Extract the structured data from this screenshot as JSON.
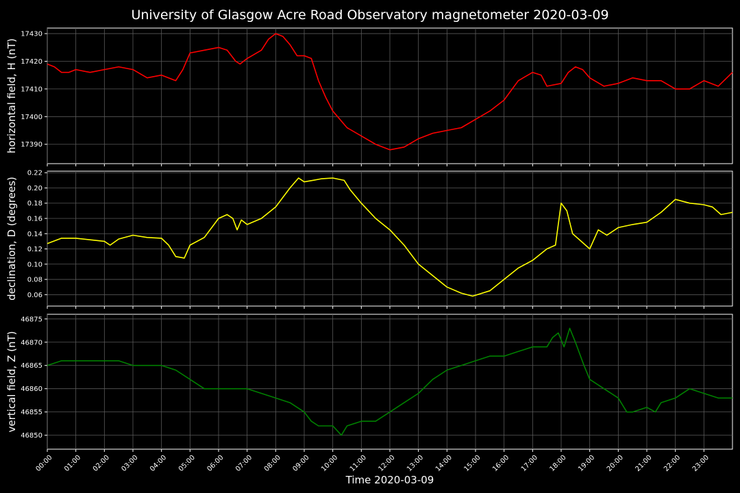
{
  "title": "University of Glasgow Acre Road Observatory magnetometer 2020-03-09",
  "chart_data": [
    {
      "type": "line",
      "id": "H",
      "ylabel": "horizontal field, H (nT)",
      "color": "#ff0000",
      "ylim": [
        17383,
        17432
      ],
      "yticks": [
        17390,
        17400,
        17410,
        17420,
        17430
      ],
      "grid": true,
      "series": [
        {
          "x": [
            0,
            0.25,
            0.5,
            0.75,
            1,
            1.5,
            2,
            2.5,
            3,
            3.5,
            4,
            4.5,
            4.75,
            5,
            5.5,
            6,
            6.3,
            6.6,
            6.75,
            7,
            7.5,
            7.75,
            8,
            8.25,
            8.5,
            8.75,
            9,
            9.25,
            9.5,
            9.75,
            10,
            10.5,
            11,
            11.5,
            12,
            12.5,
            13,
            13.5,
            14,
            14.5,
            15,
            15.5,
            16,
            16.5,
            17,
            17.3,
            17.5,
            18,
            18.25,
            18.5,
            18.75,
            19,
            19.5,
            20,
            20.5,
            21,
            21.5,
            22,
            22.5,
            23,
            23.5,
            24
          ],
          "y": [
            17419,
            17418,
            17416,
            17416,
            17417,
            17416,
            17417,
            17418,
            17417,
            17414,
            17415,
            17413,
            17417,
            17423,
            17424,
            17425,
            17424,
            17420,
            17419,
            17421,
            17424,
            17428,
            17430,
            17429,
            17426,
            17422,
            17422,
            17421,
            17413,
            17407,
            17402,
            17396,
            17393,
            17390,
            17388,
            17389,
            17392,
            17394,
            17395,
            17396,
            17399,
            17402,
            17406,
            17413,
            17416,
            17415,
            17411,
            17412,
            17416,
            17418,
            17417,
            17414,
            17411,
            17412,
            17414,
            17413,
            17413,
            17410,
            17410,
            17413,
            17411,
            17416
          ]
        }
      ]
    },
    {
      "type": "line",
      "id": "D",
      "ylabel": "declination, D (degrees)",
      "color": "#ffff00",
      "ylim": [
        0.045,
        0.222
      ],
      "yticks": [
        0.06,
        0.08,
        0.1,
        0.12,
        0.14,
        0.16,
        0.18,
        0.2,
        0.22
      ],
      "grid": true,
      "series": [
        {
          "x": [
            0,
            0.5,
            1,
            1.5,
            2,
            2.2,
            2.5,
            3,
            3.5,
            4,
            4.25,
            4.5,
            4.8,
            5,
            5.5,
            6,
            6.3,
            6.5,
            6.65,
            6.8,
            7,
            7.5,
            8,
            8.5,
            8.8,
            9,
            9.3,
            9.6,
            10,
            10.4,
            10.6,
            11,
            11.5,
            12,
            12.5,
            13,
            13.5,
            14,
            14.5,
            14.9,
            15.5,
            16,
            16.5,
            17,
            17.5,
            17.8,
            18,
            18.2,
            18.4,
            18.7,
            19,
            19.3,
            19.6,
            20,
            20.5,
            21,
            21.5,
            22,
            22.5,
            23,
            23.3,
            23.6,
            24
          ],
          "y": [
            0.127,
            0.134,
            0.134,
            0.132,
            0.13,
            0.125,
            0.133,
            0.138,
            0.135,
            0.134,
            0.125,
            0.11,
            0.108,
            0.125,
            0.135,
            0.16,
            0.165,
            0.16,
            0.145,
            0.158,
            0.152,
            0.16,
            0.175,
            0.2,
            0.213,
            0.208,
            0.21,
            0.212,
            0.213,
            0.21,
            0.198,
            0.18,
            0.16,
            0.145,
            0.125,
            0.1,
            0.085,
            0.07,
            0.062,
            0.058,
            0.065,
            0.08,
            0.095,
            0.105,
            0.12,
            0.125,
            0.18,
            0.17,
            0.14,
            0.13,
            0.12,
            0.145,
            0.138,
            0.148,
            0.152,
            0.155,
            0.168,
            0.185,
            0.18,
            0.178,
            0.175,
            0.165,
            0.168
          ]
        }
      ]
    },
    {
      "type": "line",
      "id": "Z",
      "ylabel": "vertical field, Z (nT)",
      "color": "#008000",
      "ylim": [
        46847,
        46876
      ],
      "yticks": [
        46850,
        46855,
        46860,
        46865,
        46870,
        46875
      ],
      "grid": true,
      "series": [
        {
          "x": [
            0,
            0.5,
            1,
            1.5,
            2,
            2.5,
            3,
            3.5,
            4,
            4.5,
            5,
            5.5,
            6,
            6.5,
            7,
            7.5,
            8,
            8.5,
            9,
            9.25,
            9.5,
            10,
            10.3,
            10.5,
            11,
            11.5,
            12,
            12.5,
            13,
            13.5,
            14,
            14.5,
            15,
            15.5,
            16,
            16.5,
            17,
            17.5,
            17.7,
            17.9,
            18.1,
            18.3,
            18.5,
            18.8,
            19,
            19.5,
            20,
            20.3,
            20.5,
            21,
            21.3,
            21.5,
            22,
            22.5,
            23,
            23.5,
            24
          ],
          "y": [
            46865,
            46866,
            46866,
            46866,
            46866,
            46866,
            46865,
            46865,
            46865,
            46864,
            46862,
            46860,
            46860,
            46860,
            46860,
            46859,
            46858,
            46857,
            46855,
            46853,
            46852,
            46852,
            46850,
            46852,
            46853,
            46853,
            46855,
            46857,
            46859,
            46862,
            46864,
            46865,
            46866,
            46867,
            46867,
            46868,
            46869,
            46869,
            46871,
            46872,
            46869,
            46873,
            46870,
            46865,
            46862,
            46860,
            46858,
            46855,
            46855,
            46856,
            46855,
            46857,
            46858,
            46860,
            46859,
            46858,
            46858
          ]
        }
      ]
    }
  ],
  "x_axis": {
    "xlabel": "Time 2020-03-09",
    "xlim": [
      0,
      24
    ],
    "tick_labels": [
      "00:00",
      "01:00",
      "02:00",
      "03:00",
      "04:00",
      "05:00",
      "06:00",
      "07:00",
      "08:00",
      "09:00",
      "10:00",
      "11:00",
      "12:00",
      "13:00",
      "14:00",
      "15:00",
      "16:00",
      "17:00",
      "18:00",
      "19:00",
      "20:00",
      "21:00",
      "22:00",
      "23:00"
    ]
  }
}
